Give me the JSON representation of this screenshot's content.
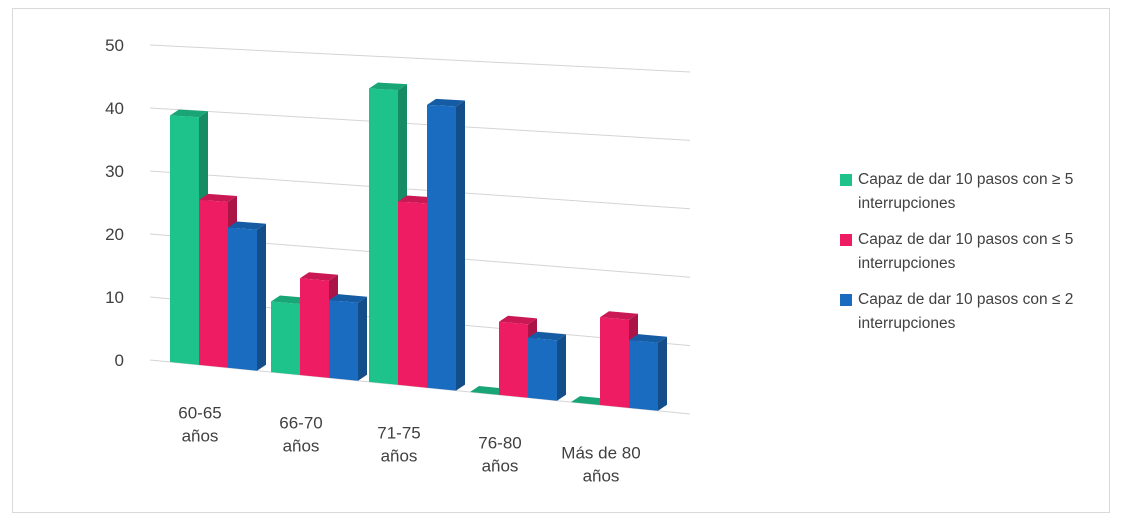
{
  "chart_data": {
    "type": "bar",
    "categories": [
      [
        "60-65",
        "años"
      ],
      [
        "66-70",
        "años"
      ],
      [
        "71-75",
        "años"
      ],
      [
        "76-80",
        "años"
      ],
      [
        "Más de 80",
        "años"
      ]
    ],
    "series": [
      {
        "name": "Capaz de dar 10 pasos con ≥ 5 interrupciones",
        "name_lines": [
          "Capaz de dar 10 pasos con ≥ 5",
          "interrupciones"
        ],
        "color": "#1ec28b",
        "values": [
          39,
          11,
          45,
          0,
          0
        ]
      },
      {
        "name": "Capaz de dar 10 pasos con ≤ 5 interrupciones",
        "name_lines": [
          "Capaz de dar 10 pasos con ≤ 5",
          "interrupciones"
        ],
        "color": "#ee1c63",
        "values": [
          26,
          15,
          28,
          11,
          13
        ]
      },
      {
        "name": "Capaz de dar 10 pasos con ≤ 2 interrupciones",
        "name_lines": [
          "Capaz de dar 10 pasos con ≤ 2",
          "interrupciones"
        ],
        "color": "#1a6cc1",
        "values": [
          22,
          12,
          43,
          9,
          10
        ]
      }
    ],
    "yticks": [
      0,
      10,
      20,
      30,
      40,
      50
    ],
    "ylim": [
      0,
      50
    ],
    "grid": true,
    "legend_position": "right",
    "title": "",
    "xlabel": "",
    "ylabel": ""
  }
}
